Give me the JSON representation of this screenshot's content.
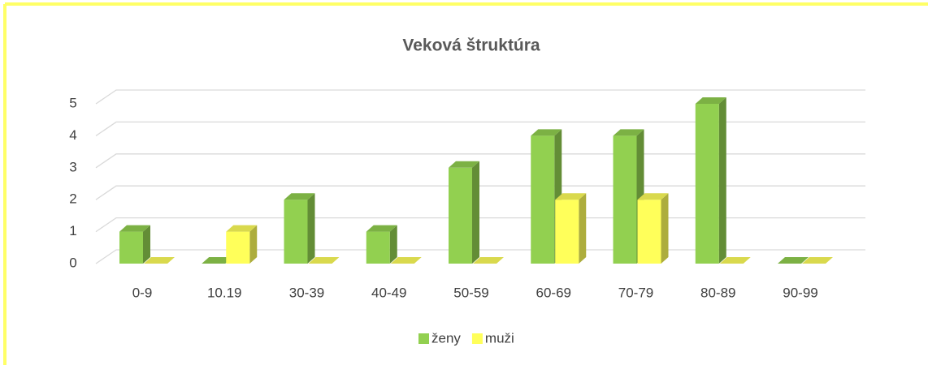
{
  "chart_data": {
    "type": "bar3d",
    "title": "Veková štruktúra",
    "categories": [
      "0-9",
      "10.19",
      "30-39",
      "40-49",
      "50-59",
      "60-69",
      "70-79",
      "80-89",
      "90-99"
    ],
    "series": [
      {
        "name": "ženy",
        "color": "#92d050",
        "values": [
          1,
          0,
          2,
          1,
          3,
          4,
          4,
          5,
          0
        ]
      },
      {
        "name": "muži",
        "color": "#ffff5a",
        "values": [
          0,
          1,
          0,
          0,
          0,
          2,
          2,
          0,
          0
        ]
      }
    ],
    "ylim": [
      0,
      5
    ],
    "yticks": [
      0,
      1,
      2,
      3,
      4,
      5
    ],
    "grid": true,
    "legend": "bottom"
  }
}
